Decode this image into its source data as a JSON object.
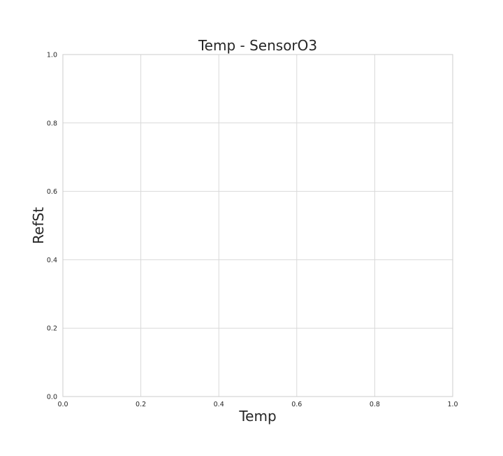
{
  "chart_data": {
    "type": "scatter",
    "title": "Temp - SensorO3",
    "xlabel": "Temp",
    "ylabel": "RefSt",
    "xlim": [
      0.0,
      1.0
    ],
    "ylim": [
      0.0,
      1.0
    ],
    "xticks": [
      "0.0",
      "0.2",
      "0.4",
      "0.6",
      "0.8",
      "1.0"
    ],
    "yticks": [
      "0.0",
      "0.2",
      "0.4",
      "0.6",
      "0.8",
      "1.0"
    ],
    "grid": true,
    "series": [],
    "colors": {
      "grid": "#d9d9d9",
      "axes_edge": "#cccccc",
      "text": "#262626",
      "background": "#ffffff"
    }
  }
}
